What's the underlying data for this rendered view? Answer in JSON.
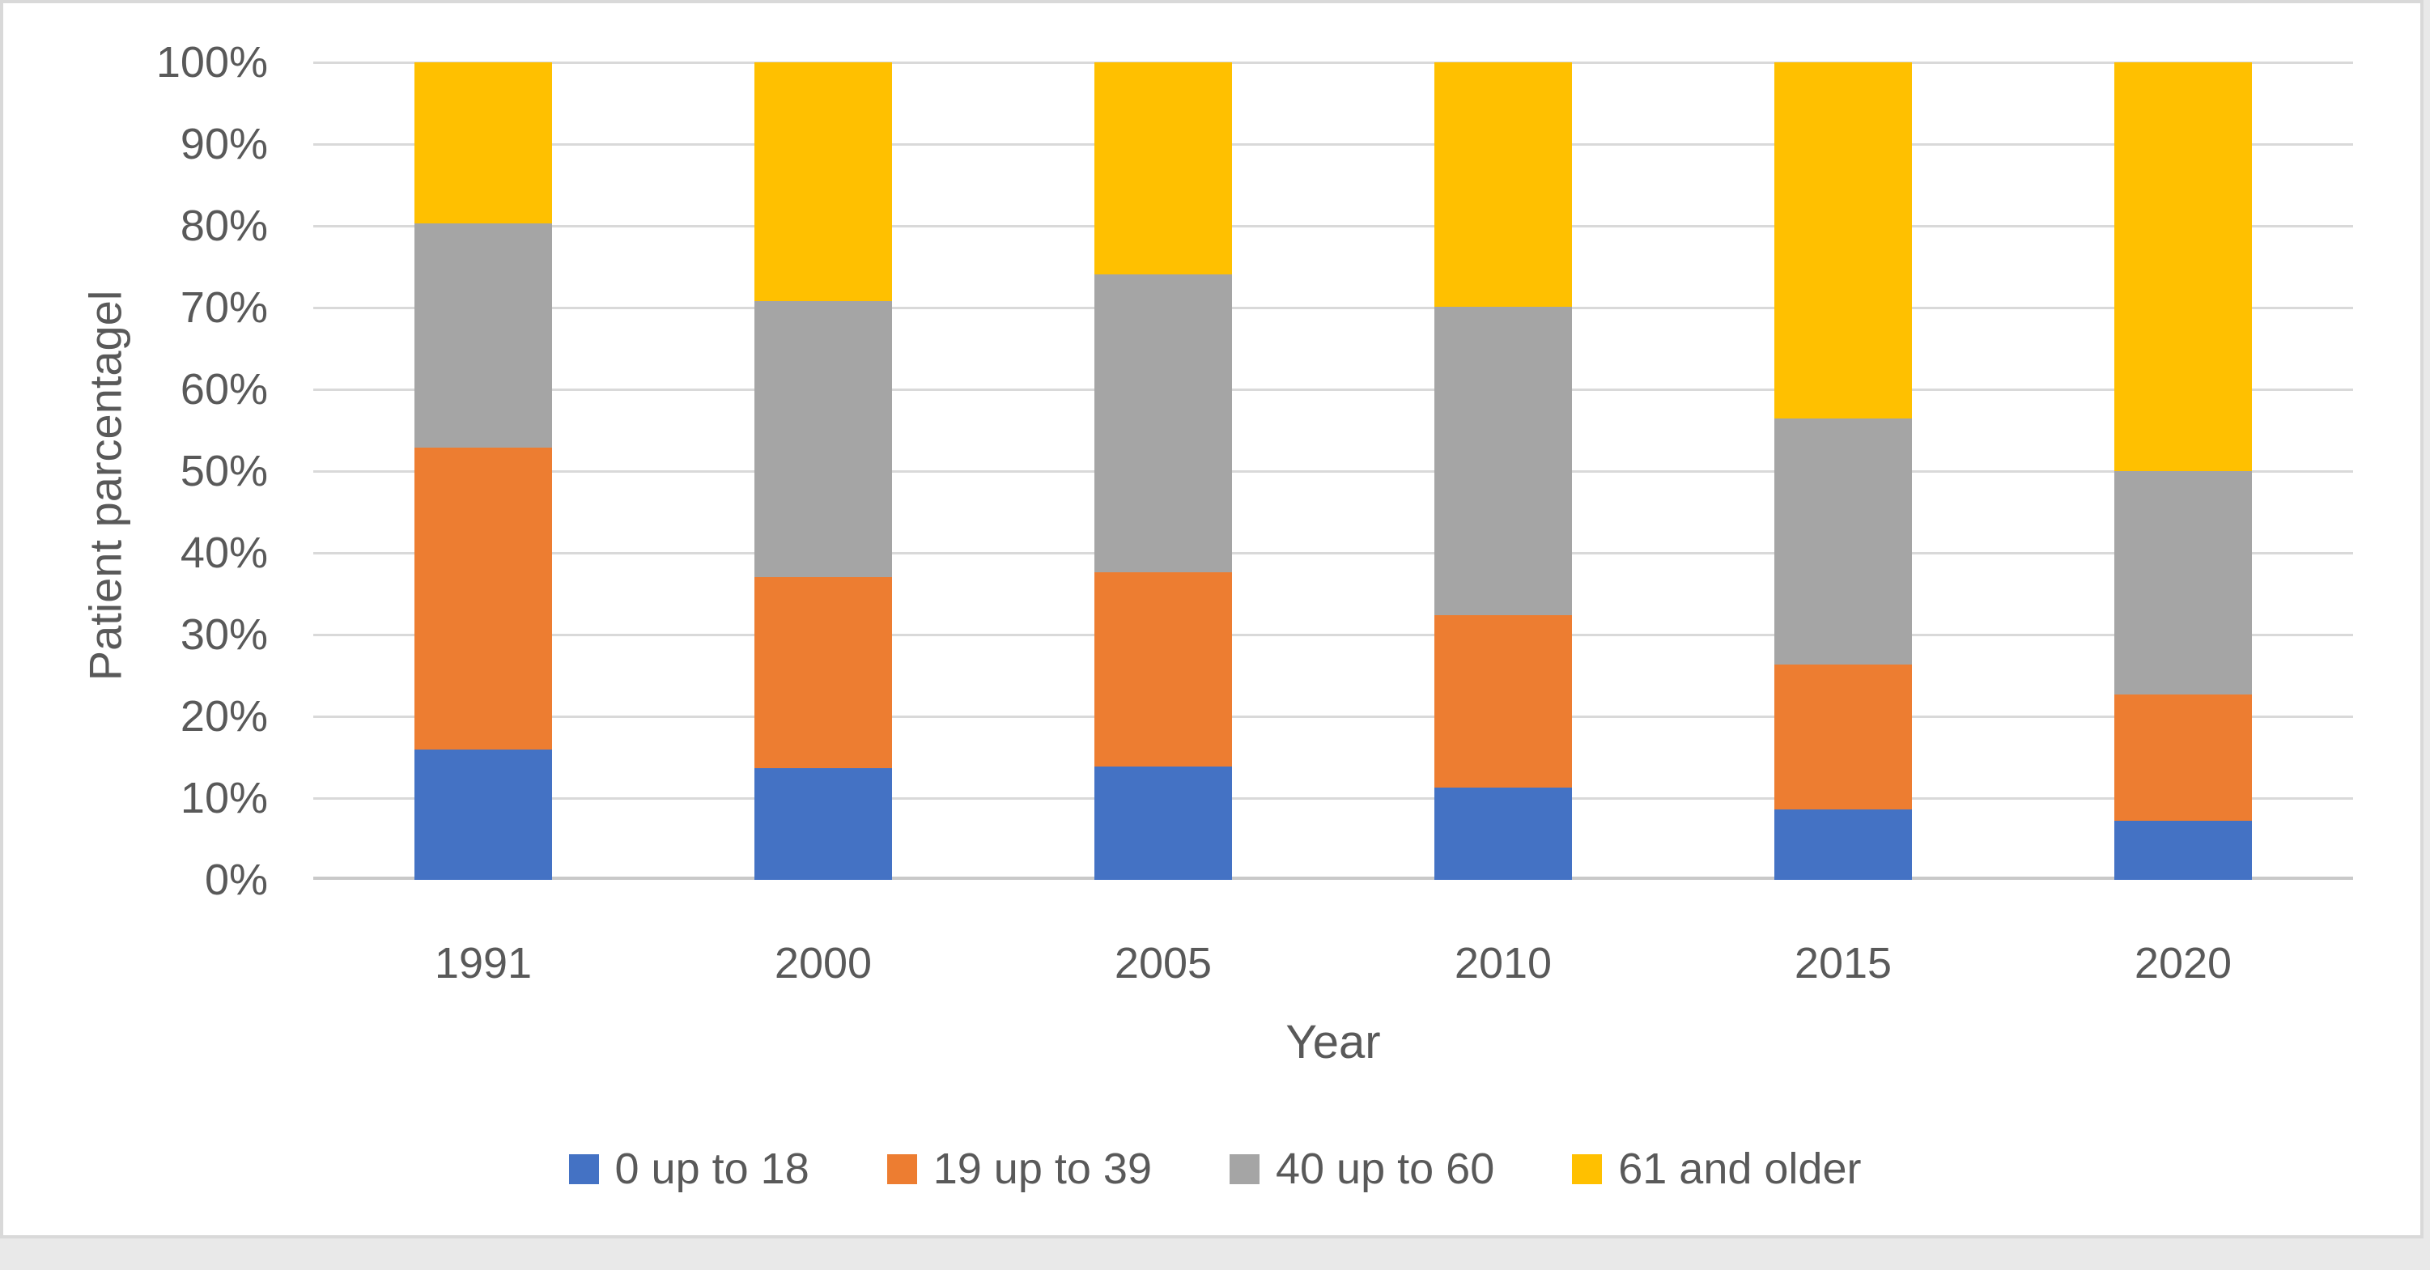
{
  "chart_data": {
    "type": "bar",
    "stacked": true,
    "percent_stacked": true,
    "title": "",
    "xlabel": "Year",
    "ylabel": "Patient parcentagel",
    "categories": [
      "1991",
      "2000",
      "2005",
      "2010",
      "2015",
      "2020"
    ],
    "series": [
      {
        "name": "0 up to 18",
        "color": "#4472C4",
        "values": [
          15.9,
          13.7,
          13.9,
          11.3,
          8.6,
          7.2
        ]
      },
      {
        "name": "19 up to 39",
        "color": "#ED7D31",
        "values": [
          37.0,
          23.3,
          23.7,
          21.1,
          17.7,
          15.5
        ]
      },
      {
        "name": "40 up to 60",
        "color": "#A5A5A5",
        "values": [
          27.4,
          33.8,
          36.5,
          37.7,
          30.1,
          27.3
        ]
      },
      {
        "name": "61 and older",
        "color": "#FFC000",
        "values": [
          19.7,
          29.2,
          25.9,
          29.9,
          43.6,
          50.0
        ]
      }
    ],
    "y_ticks": [
      "0%",
      "10%",
      "20%",
      "30%",
      "40%",
      "50%",
      "60%",
      "70%",
      "80%",
      "90%",
      "100%"
    ],
    "ylim": [
      0,
      100
    ],
    "grid": true,
    "legend_position": "bottom"
  },
  "style_colors": {
    "text": "#595959",
    "gridline": "#D9D9D9",
    "axis_line": "#C9C9C9",
    "frame_border": "#D9D9D9",
    "background": "#FFFFFF"
  }
}
